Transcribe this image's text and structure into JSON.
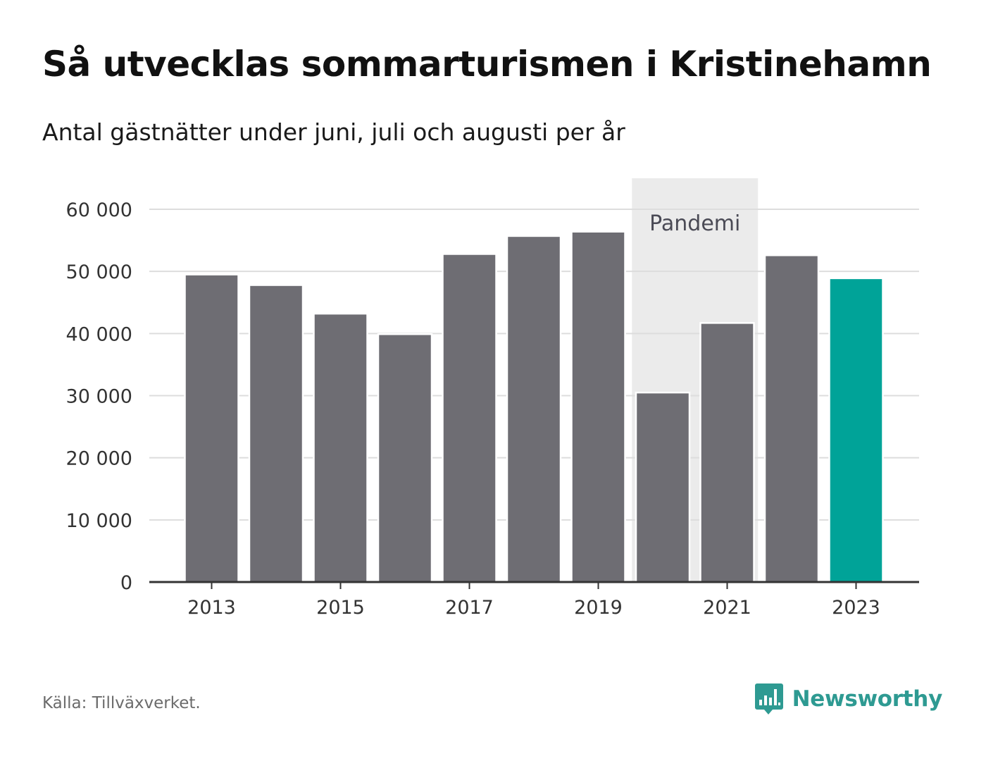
{
  "header": {
    "title": "Så utvecklas sommarturismen i Kristinehamn",
    "subtitle": "Antal gästnätter under juni, juli och augusti per år"
  },
  "footer": {
    "source": "Källa: Tillväxverket.",
    "brand_name": "Newsworthy",
    "brand_icon": "bar-chart-speech-bubble-icon"
  },
  "colors": {
    "bar": "#6e6d73",
    "highlight_bar": "#00a398",
    "pandemic_band": "#ebebeb",
    "grid": "#dddddd",
    "axis": "#333333",
    "brand": "#2e9a92"
  },
  "chart_data": {
    "type": "bar",
    "title": "Så utvecklas sommarturismen i Kristinehamn",
    "subtitle": "Antal gästnätter under juni, juli och augusti per år",
    "xlabel": "",
    "ylabel": "",
    "categories": [
      "2013",
      "2014",
      "2015",
      "2016",
      "2017",
      "2018",
      "2019",
      "2020",
      "2021",
      "2022",
      "2023"
    ],
    "values": [
      49500,
      47800,
      43200,
      39900,
      52800,
      55700,
      56400,
      30500,
      41700,
      52600,
      48900
    ],
    "highlight": "2023",
    "ylim": [
      0,
      60000
    ],
    "yticks": [
      0,
      10000,
      20000,
      30000,
      40000,
      50000,
      60000
    ],
    "ytick_labels": [
      "0",
      "10 000",
      "20 000",
      "30 000",
      "40 000",
      "50 000",
      "60 000"
    ],
    "xtick_labels": [
      "2013",
      "2015",
      "2017",
      "2019",
      "2021",
      "2023"
    ],
    "grid": true,
    "annotations": [
      {
        "type": "band",
        "label": "Pandemi",
        "from": "2020",
        "to": "2021"
      }
    ]
  }
}
